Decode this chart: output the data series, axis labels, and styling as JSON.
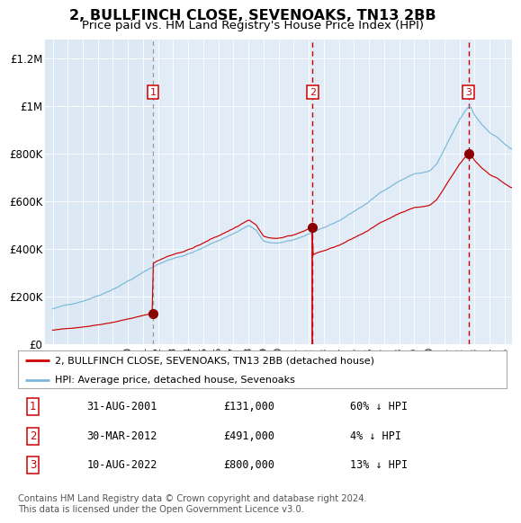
{
  "title": "2, BULLFINCH CLOSE, SEVENOAKS, TN13 2BB",
  "subtitle": "Price paid vs. HM Land Registry's House Price Index (HPI)",
  "xlim": [
    1994.5,
    2025.5
  ],
  "ylim": [
    0,
    1280000
  ],
  "yticks": [
    0,
    200000,
    400000,
    600000,
    800000,
    1000000,
    1200000
  ],
  "ytick_labels": [
    "£0",
    "£200K",
    "£400K",
    "£600K",
    "£800K",
    "£1M",
    "£1.2M"
  ],
  "xticks": [
    1995,
    1996,
    1997,
    1998,
    1999,
    2000,
    2001,
    2002,
    2003,
    2004,
    2005,
    2006,
    2007,
    2008,
    2009,
    2010,
    2011,
    2012,
    2013,
    2014,
    2015,
    2016,
    2017,
    2018,
    2019,
    2020,
    2021,
    2022,
    2023,
    2024,
    2025
  ],
  "bg_color": "#dce9f5",
  "fig_bg_color": "#ffffff",
  "hpi_color": "#7ab8d9",
  "price_color": "#cc0000",
  "sale_marker_color": "#8b0000",
  "sale1_date": 2001.67,
  "sale1_price": 131000,
  "sale2_date": 2012.25,
  "sale2_price": 491000,
  "sale3_date": 2022.6,
  "sale3_price": 800000,
  "sale1_label": "1",
  "sale2_label": "2",
  "sale3_label": "3",
  "sale1_text": "31-AUG-2001",
  "sale1_amount": "£131,000",
  "sale1_pct": "60% ↓ HPI",
  "sale2_text": "30-MAR-2012",
  "sale2_amount": "£491,000",
  "sale2_pct": "4% ↓ HPI",
  "sale3_text": "10-AUG-2022",
  "sale3_amount": "£800,000",
  "sale3_pct": "13% ↓ HPI",
  "legend_line1": "2, BULLFINCH CLOSE, SEVENOAKS, TN13 2BB (detached house)",
  "legend_line2": "HPI: Average price, detached house, Sevenoaks",
  "footer": "Contains HM Land Registry data © Crown copyright and database right 2024.\nThis data is licensed under the Open Government Licence v3.0."
}
